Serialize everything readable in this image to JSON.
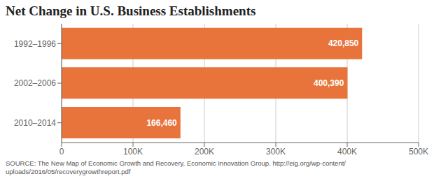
{
  "chart_data": {
    "type": "bar",
    "orientation": "horizontal",
    "title": "Net Change in U.S. Business Establishments",
    "categories": [
      "2010–2014",
      "2002–2006",
      "1992–1996"
    ],
    "values": [
      166460,
      400390,
      420850
    ],
    "value_labels": [
      "166,460",
      "400,390",
      "420,850"
    ],
    "data_labels": true,
    "color": "#E8743B",
    "xlim": [
      0,
      500000
    ],
    "xticks": [
      0,
      {
        "value": 100000,
        "label": "100K"
      },
      {
        "value": 200000,
        "label": "200K"
      },
      {
        "value": 300000,
        "label": "300K"
      },
      {
        "value": 400000,
        "label": "400K"
      },
      {
        "value": 500000,
        "label": "500K"
      }
    ],
    "grid": true,
    "annotations": [
      "SOURCE: The New Map of Economic Growth and Recovery, Economic Innovation Group. http://eig.org/wp-content/\nuploads/2016/05/recoverygrowthreport.pdf"
    ]
  }
}
